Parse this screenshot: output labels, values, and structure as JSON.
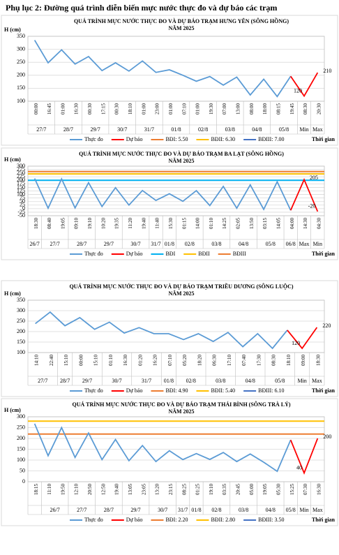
{
  "page_title": "Phụ lục 2: Đường quá trình diễn biến mực nước thực đo và dự báo các trạm",
  "chart_data": [
    {
      "type": "line",
      "title": "QUÁ TRÌNH MỰC NƯỚC THỰC ĐO VÀ DỰ BÁO TRẠM HƯNG YÊN  (SÔNG HỒNG)",
      "subtitle": "NĂM 2025",
      "ylabel": "H (cm)",
      "xlabel": "Thời gian",
      "categories": [
        "00:00",
        "16:45",
        "01:00",
        "16:30",
        "00:30",
        "17:15",
        "00:30",
        "18:10",
        "01:00",
        "23:00",
        "01:00",
        "07:10",
        "01:00",
        "19:30",
        "07:00",
        "13:00",
        "08:00",
        "18:00",
        "08:15",
        "19:45",
        "08:30",
        "20:30"
      ],
      "dates": [
        "27/7",
        "27/7",
        "28/7",
        "28/7",
        "29/7",
        "29/7",
        "30/7",
        "30/7",
        "31/7",
        "31/7",
        "01/8",
        "01/8",
        "02/8",
        "02/8",
        "03/8",
        "03/8",
        "04/8",
        "04/8",
        "05/8",
        "05/8",
        "Min",
        "Max"
      ],
      "ylim": [
        100,
        350
      ],
      "yticks": [
        100,
        150,
        200,
        250,
        300,
        350
      ],
      "grid": true,
      "series": [
        {
          "name": "Thực đo",
          "color": "#5b9bd5",
          "values": [
            335,
            248,
            298,
            243,
            272,
            218,
            248,
            216,
            255,
            211,
            221,
            200,
            177,
            195,
            162,
            193,
            124,
            185,
            118,
            196,
            null,
            null
          ]
        },
        {
          "name": "Dự báo",
          "color": "#ff0000",
          "values": [
            null,
            null,
            null,
            null,
            null,
            null,
            null,
            null,
            null,
            null,
            null,
            null,
            null,
            null,
            null,
            null,
            null,
            null,
            null,
            196,
            120,
            210
          ]
        }
      ],
      "alarms": [
        {
          "name": "BĐI: 5.50",
          "color": "#ed7d31"
        },
        {
          "name": "BĐII: 6.30",
          "color": "#ffc000"
        },
        {
          "name": "BĐIII: 7.00",
          "color": "#4472c4"
        }
      ]
    },
    {
      "type": "line",
      "title": "QUÁ TRÌNH MỰC NƯỚC THỰC ĐO VÀ DỰ BÁO TRẠM BA LẠT (SÔNG HỒNG)",
      "subtitle": "NĂM 2025",
      "ylabel": "H (cm)",
      "xlabel": "Thời gian",
      "categories": [
        "18:30",
        "08:40",
        "19:05",
        "09:10",
        "19:10",
        "10:20",
        "19:35",
        "11:20",
        "19:40",
        "11:40",
        "15:30",
        "01:15",
        "14:00",
        "01:10",
        "14:25",
        "02:05",
        "13:50",
        "03:15",
        "14:05",
        "04:00",
        "14:30",
        "04:30"
      ],
      "dates": [
        "26/7",
        "27/7",
        "27/7",
        "28/7",
        "28/7",
        "29/7",
        "29/7",
        "30/7",
        "30/7",
        "31/7",
        "01/8",
        "02/8",
        "02/8",
        "03/8",
        "03/8",
        "04/8",
        "04/8",
        "05/8",
        "05/8",
        "06/8",
        "Max",
        "Min"
      ],
      "ylim": [
        -50,
        300
      ],
      "yticks": [
        -50,
        -25,
        0,
        25,
        50,
        75,
        100,
        125,
        150,
        175,
        200,
        225,
        250,
        275,
        300
      ],
      "grid": true,
      "series": [
        {
          "name": "Thực đo",
          "color": "#5b9bd5",
          "values": [
            213,
            3,
            210,
            5,
            183,
            15,
            148,
            25,
            128,
            58,
            105,
            52,
            127,
            22,
            157,
            3,
            168,
            -5,
            190,
            -12,
            null,
            null
          ]
        },
        {
          "name": "Dự báo",
          "color": "#ff0000",
          "values": [
            null,
            null,
            null,
            null,
            null,
            null,
            null,
            null,
            null,
            null,
            null,
            null,
            null,
            null,
            null,
            null,
            null,
            null,
            null,
            -12,
            205,
            -20
          ]
        }
      ],
      "alarms": [
        {
          "name": "BĐI",
          "color": "#00b0f0",
          "level": 200
        },
        {
          "name": "BĐII",
          "color": "#ffc000",
          "level": 245
        },
        {
          "name": "BĐIII",
          "color": "#ed7d31",
          "level": 262
        }
      ]
    },
    {
      "type": "line",
      "title": "QUÁ TRÌNH MỰC NƯỚC THỰC ĐO VÀ DỰ BÁO TRẠM TRIỀU DƯƠNG  (SÔNG LUỘC)",
      "subtitle": "NĂM 2025",
      "ylabel": "H (cm)",
      "xlabel": "Thời gian",
      "categories": [
        "14:10",
        "22:40",
        "15:10",
        "00:00",
        "15:10",
        "01:10",
        "16:30",
        "01:20",
        "16:20",
        "07:10",
        "05:20",
        "18:20",
        "06:30",
        "17:10",
        "07:40",
        "17:30",
        "08:30",
        "18:10",
        "09:00",
        "18:30"
      ],
      "dates": [
        "27/7",
        "27/7",
        "28/7",
        "29/7",
        "29/7",
        "30/7",
        "30/7",
        "31/7",
        "31/7",
        "01/8",
        "02/8",
        "02/8",
        "03/8",
        "03/8",
        "04/8",
        "04/8",
        "05/8",
        "05/8",
        "Min",
        "Max"
      ],
      "ylim": [
        100,
        350
      ],
      "yticks": [
        100,
        150,
        200,
        250,
        300,
        350
      ],
      "grid": true,
      "series": [
        {
          "name": "Thực đo",
          "color": "#5b9bd5",
          "values": [
            238,
            293,
            228,
            267,
            211,
            245,
            193,
            219,
            190,
            190,
            162,
            190,
            153,
            196,
            128,
            190,
            120,
            207,
            null,
            null
          ]
        },
        {
          "name": "Dự báo",
          "color": "#ff0000",
          "values": [
            null,
            null,
            null,
            null,
            null,
            null,
            null,
            null,
            null,
            null,
            null,
            null,
            null,
            null,
            null,
            null,
            null,
            207,
            120,
            220
          ]
        }
      ],
      "alarms": [
        {
          "name": "BĐI: 4.90",
          "color": "#ed7d31"
        },
        {
          "name": "BĐII: 5.40",
          "color": "#ffc000"
        },
        {
          "name": "BĐIII: 6.10",
          "color": "#4472c4"
        }
      ]
    },
    {
      "type": "line",
      "title": "QUÁ TRÌNH MỰC NƯỚC THỰC ĐO VÀ DỰ BÁO TRẠM THÁI BÌNH (SÔNG TRÀ LÝ)",
      "subtitle": "NĂM 2025",
      "ylabel": "H (cm)",
      "xlabel": "Thời gian",
      "categories": [
        "18:15",
        "11:10",
        "19:50",
        "12:10",
        "20:50",
        "12:50",
        "19:40",
        "13:05",
        "23:05",
        "13:20",
        "23:15",
        "08:25",
        "01:25",
        "19:10",
        "03:35",
        "20:45",
        "05:00",
        "19:05",
        "05:30",
        "15:25",
        "07:30",
        "16:30"
      ],
      "dates": [
        null,
        "26/7",
        "26/7",
        "27/7",
        "27/7",
        "28/7",
        "28/7",
        "29/7",
        "29/7",
        "30/7",
        "30/7",
        "31/7",
        "01/8",
        "02/8",
        "02/8",
        "03/8",
        "03/8",
        "04/8",
        "04/8",
        "05/8",
        "Min",
        "Max"
      ],
      "ylim": [
        0,
        300
      ],
      "yticks": [
        0,
        50,
        100,
        150,
        200,
        250,
        300
      ],
      "grid": true,
      "series": [
        {
          "name": "Thực đo",
          "color": "#5b9bd5",
          "values": [
            268,
            120,
            250,
            112,
            225,
            102,
            195,
            97,
            167,
            93,
            143,
            102,
            130,
            103,
            135,
            93,
            128,
            90,
            48,
            193,
            null,
            null
          ]
        },
        {
          "name": "Dự báo",
          "color": "#ff0000",
          "values": [
            null,
            null,
            null,
            null,
            null,
            null,
            null,
            null,
            null,
            null,
            null,
            null,
            null,
            null,
            null,
            null,
            null,
            null,
            null,
            193,
            40,
            200
          ]
        }
      ],
      "alarms": [
        {
          "name": "BĐI: 2.20",
          "color": "#ed7d31",
          "level": 220
        },
        {
          "name": "BĐII: 2.80",
          "color": "#ffc000",
          "level": 280
        },
        {
          "name": "BĐIII: 3.50",
          "color": "#4472c4"
        }
      ]
    }
  ]
}
